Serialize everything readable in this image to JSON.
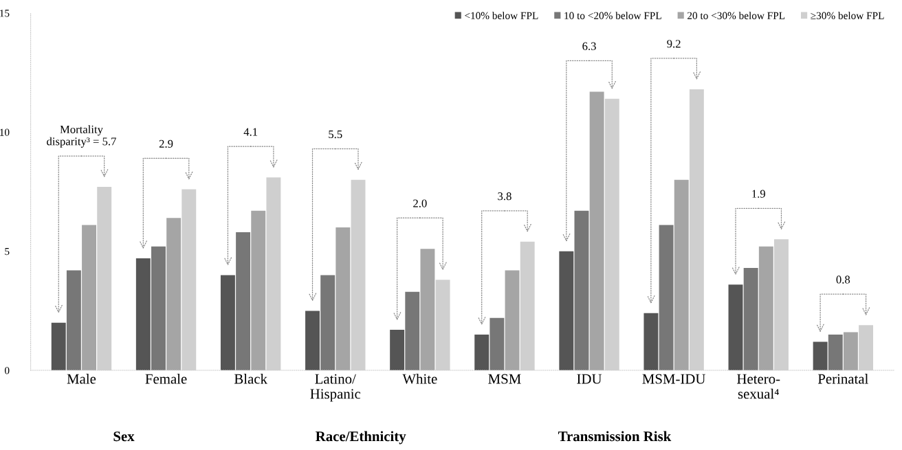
{
  "chart_data": {
    "type": "bar",
    "categories": [
      "Male",
      "Female",
      "Black",
      "Latino/\nHispanic",
      "White",
      "MSM",
      "IDU",
      "MSM-IDU",
      "Hetero-\nsexual⁴",
      "Perinatal"
    ],
    "series": [
      {
        "name": "<10% below FPL",
        "color": "#555555",
        "values": [
          2.0,
          4.7,
          4.0,
          2.5,
          1.7,
          1.5,
          5.0,
          2.4,
          3.6,
          1.2
        ]
      },
      {
        "name": "10 to <20% below FPL",
        "color": "#777777",
        "values": [
          4.2,
          5.2,
          5.8,
          4.0,
          3.3,
          2.2,
          6.7,
          6.1,
          4.3,
          1.5
        ]
      },
      {
        "name": "20 to <30% below FPL",
        "color": "#a5a5a5",
        "values": [
          6.1,
          6.4,
          6.7,
          6.0,
          5.1,
          4.2,
          11.7,
          8.0,
          5.2,
          1.6
        ]
      },
      {
        "name": "≥30% below FPL",
        "color": "#cfcfcf",
        "values": [
          7.7,
          7.6,
          8.1,
          8.0,
          3.8,
          5.4,
          11.4,
          11.8,
          5.5,
          1.9
        ]
      }
    ],
    "ylim": [
      0,
      15
    ],
    "yticks": [
      0,
      5,
      10,
      15
    ],
    "grid": false,
    "legend": "top right",
    "annotations": [
      "Mortality\ndisparity³ = 5.7",
      "2.9",
      "4.1",
      "5.5",
      "2.0",
      "3.8",
      "6.3",
      "9.2",
      "1.9",
      "0.8",
      "Sex",
      "Race/Ethnicity",
      "Transmission Risk"
    ]
  }
}
